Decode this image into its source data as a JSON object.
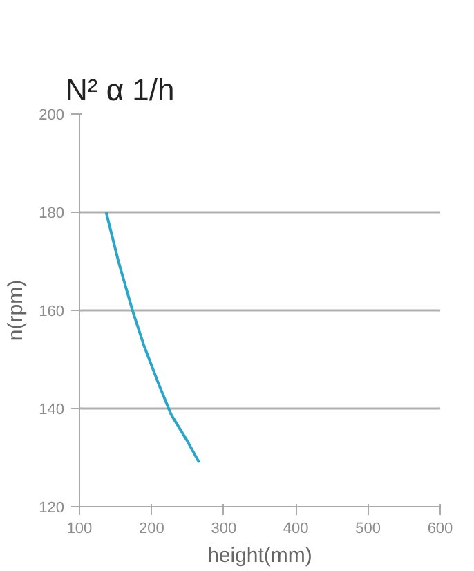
{
  "chart_data": {
    "type": "line",
    "title": "N² α 1/h",
    "xlabel": "height(mm)",
    "ylabel": "n(rpm)",
    "x": [
      137,
      154,
      173.5,
      189,
      209,
      227,
      249,
      266
    ],
    "series": [
      {
        "color": "#2ba6c8",
        "values": [
          180,
          170,
          160,
          153,
          145.3,
          138.8,
          133.5,
          129
        ]
      }
    ],
    "xlim": [
      100,
      600
    ],
    "xticks": [
      100,
      200,
      300,
      400,
      500,
      600
    ],
    "ylim": [
      120,
      200
    ],
    "yticks": [
      120,
      140,
      160,
      180,
      200
    ],
    "grid": "y",
    "marker": "none",
    "line_style": "solid"
  }
}
